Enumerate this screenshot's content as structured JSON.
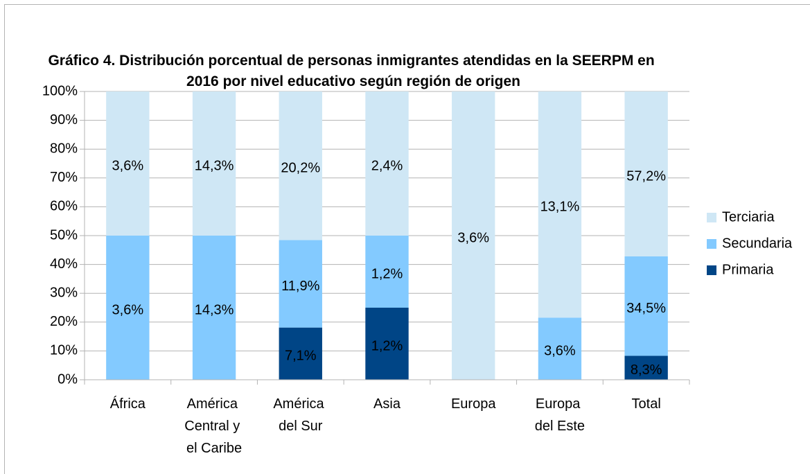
{
  "chart_data": {
    "type": "bar",
    "stacking": "percent",
    "title": "Gráfico 4. Distribución porcentual de personas inmigrantes atendidas en la SEERPM en 2016 por nivel educativo según región de origen",
    "categories": [
      "África",
      "América Central y el Caribe",
      "América del Sur",
      "Asia",
      "Europa",
      "Europa del Este",
      "Total"
    ],
    "series": [
      {
        "name": "Primaria",
        "color": "#004586",
        "values": [
          null,
          null,
          7.1,
          1.2,
          null,
          null,
          8.3
        ],
        "value_labels": [
          null,
          null,
          "7,1%",
          "1,2%",
          null,
          null,
          "8,3%"
        ]
      },
      {
        "name": "Secundaria",
        "color": "#83caff",
        "values": [
          3.6,
          14.3,
          11.9,
          1.2,
          null,
          3.6,
          34.5
        ],
        "value_labels": [
          "3,6%",
          "14,3%",
          "11,9%",
          "1,2%",
          null,
          "3,6%",
          "34,5%"
        ]
      },
      {
        "name": "Terciaria",
        "color": "#cfe7f5",
        "values": [
          3.6,
          14.3,
          20.2,
          2.4,
          3.6,
          13.1,
          57.2
        ],
        "value_labels": [
          "3,6%",
          "14,3%",
          "20,2%",
          "2,4%",
          "3,6%",
          "13,1%",
          "57,2%"
        ]
      }
    ],
    "ylim": [
      0,
      100
    ],
    "yticks": [
      {
        "value": 0,
        "label": "0%"
      },
      {
        "value": 10,
        "label": "10%"
      },
      {
        "value": 20,
        "label": "20%"
      },
      {
        "value": 30,
        "label": "30%"
      },
      {
        "value": 40,
        "label": "40%"
      },
      {
        "value": 50,
        "label": "50%"
      },
      {
        "value": 60,
        "label": "60%"
      },
      {
        "value": 70,
        "label": "70%"
      },
      {
        "value": 80,
        "label": "80%"
      },
      {
        "value": 90,
        "label": "90%"
      },
      {
        "value": 100,
        "label": "100%"
      }
    ],
    "grid": true,
    "legend": "right"
  }
}
